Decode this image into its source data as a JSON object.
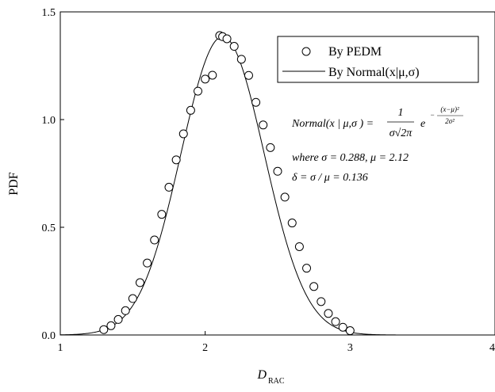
{
  "chart_data": {
    "type": "scatter",
    "xlabel": "D",
    "xlabel_subscript": "RAC",
    "ylabel": "PDF",
    "xlim": [
      1,
      4
    ],
    "ylim": [
      0,
      1.5
    ],
    "xticks": [
      "1",
      "2",
      "3",
      "4"
    ],
    "yticks": [
      "0.0",
      "0.5",
      "1.0",
      "1.5"
    ],
    "grid": false,
    "legend_position": "top-right",
    "legend": [
      "By PEDM",
      "By Normal(x|μ,σ)"
    ],
    "series": [
      {
        "name": "By PEDM",
        "marker": "open-circle",
        "x": [
          1.3,
          1.35,
          1.4,
          1.45,
          1.5,
          1.55,
          1.6,
          1.65,
          1.7,
          1.75,
          1.8,
          1.85,
          1.9,
          1.95,
          2.0,
          2.05,
          2.1,
          2.12,
          2.15,
          2.2,
          2.25,
          2.3,
          2.35,
          2.4,
          2.45,
          2.5,
          2.55,
          2.6,
          2.65,
          2.7,
          2.75,
          2.8,
          2.85,
          2.9,
          2.95,
          3.0
        ],
        "y": [
          0.025,
          0.043,
          0.072,
          0.113,
          0.169,
          0.243,
          0.334,
          0.441,
          0.56,
          0.686,
          0.813,
          0.934,
          1.043,
          1.132,
          1.188,
          1.206,
          1.39,
          1.385,
          1.375,
          1.34,
          1.28,
          1.205,
          1.08,
          0.975,
          0.87,
          0.76,
          0.64,
          0.52,
          0.41,
          0.31,
          0.225,
          0.155,
          0.1,
          0.062,
          0.036,
          0.02
        ]
      },
      {
        "name": "By Normal(x|μ,σ)",
        "line": "thin-black",
        "mu": 2.12,
        "sigma": 0.288,
        "x_range": [
          1,
          4
        ]
      }
    ]
  },
  "annotation": {
    "formula_lhs": "Normal(x | μ,σ ) =",
    "formula_numerator": "1",
    "formula_denominator": "σ√2π",
    "formula_exp_base": "e",
    "formula_exp_numerator": "(x−μ)²",
    "formula_exp_denominator": "2σ²",
    "formula_exp_sign": "−",
    "params_line": "where  σ = 0.288, μ = 2.12",
    "delta_line": "δ = σ / μ = 0.136"
  }
}
